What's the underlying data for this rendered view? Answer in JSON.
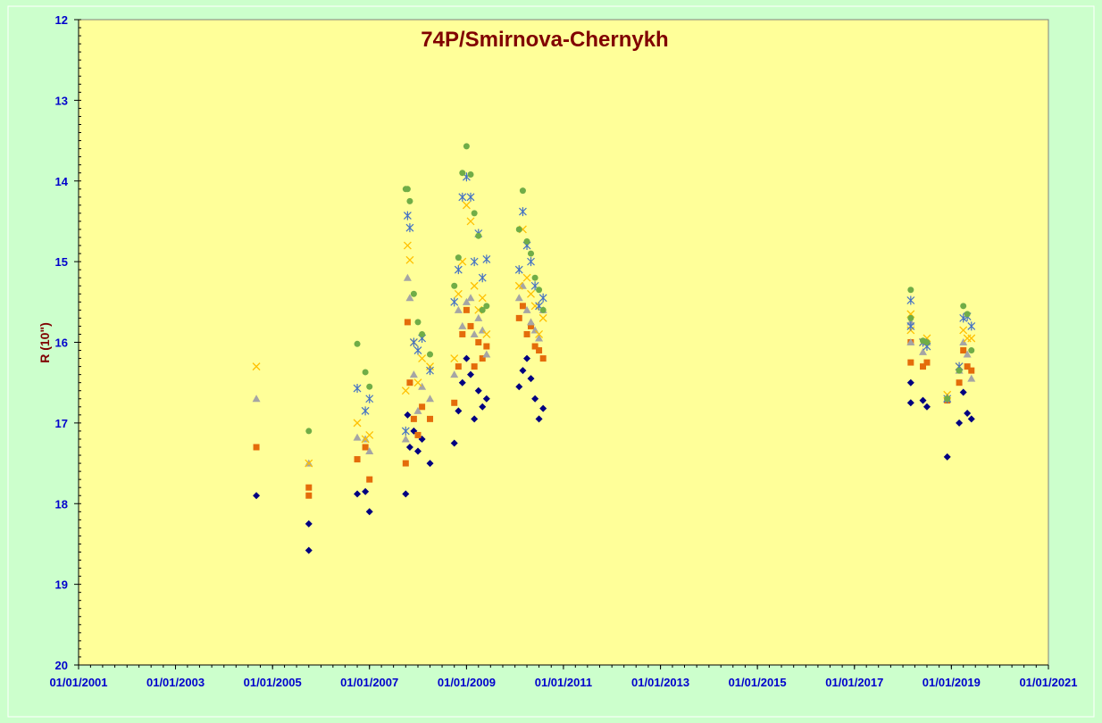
{
  "chart_data": {
    "type": "scatter",
    "title": "74P/Smirnova-Chernykh",
    "ylabel": "R (10\")",
    "xlabel": "",
    "x_axis": "date",
    "xlim": [
      "2001-01-01",
      "2021-01-01"
    ],
    "x_tick_labels": [
      "01/01/2001",
      "01/01/2003",
      "01/01/2005",
      "01/01/2007",
      "01/01/2009",
      "01/01/2011",
      "01/01/2013",
      "01/01/2015",
      "01/01/2017",
      "01/01/2019",
      "01/01/2021"
    ],
    "x_ticks": [
      "2001-01-01",
      "2003-01-01",
      "2005-01-01",
      "2007-01-01",
      "2009-01-01",
      "2011-01-01",
      "2013-01-01",
      "2015-01-01",
      "2017-01-01",
      "2019-01-01",
      "2021-01-01"
    ],
    "ylim": [
      12,
      20
    ],
    "y_inverted": true,
    "y_ticks": [
      12,
      13,
      14,
      15,
      16,
      17,
      18,
      19,
      20
    ],
    "grid": false,
    "legend": "none",
    "colors": {
      "background": "#ccffcc",
      "plot_area": "#ffff99",
      "title": "#800000",
      "tick_labels": "#0000cc"
    },
    "series": [
      {
        "color": "#000080",
        "marker": "diamond",
        "points": [
          [
            "2004-09-01",
            17.9
          ],
          [
            "2005-10-01",
            18.25
          ],
          [
            "2005-10-01",
            18.58
          ],
          [
            "2006-10-01",
            17.88
          ],
          [
            "2006-12-01",
            17.85
          ],
          [
            "2007-01-01",
            18.1
          ],
          [
            "2007-10-01",
            17.88
          ],
          [
            "2007-10-15",
            16.9
          ],
          [
            "2007-11-01",
            17.3
          ],
          [
            "2007-12-01",
            17.1
          ],
          [
            "2008-01-01",
            17.35
          ],
          [
            "2008-02-01",
            17.2
          ],
          [
            "2008-04-01",
            17.5
          ],
          [
            "2008-10-01",
            17.25
          ],
          [
            "2008-11-01",
            16.85
          ],
          [
            "2008-12-01",
            16.5
          ],
          [
            "2009-01-01",
            16.2
          ],
          [
            "2009-02-01",
            16.4
          ],
          [
            "2009-03-01",
            16.95
          ],
          [
            "2009-04-01",
            16.6
          ],
          [
            "2009-05-01",
            16.8
          ],
          [
            "2009-06-01",
            16.7
          ],
          [
            "2010-02-01",
            16.55
          ],
          [
            "2010-03-01",
            16.35
          ],
          [
            "2010-04-01",
            16.2
          ],
          [
            "2010-05-01",
            16.45
          ],
          [
            "2010-06-01",
            16.7
          ],
          [
            "2010-07-01",
            16.95
          ],
          [
            "2010-08-01",
            16.82
          ],
          [
            "2018-03-01",
            16.5
          ],
          [
            "2018-03-01",
            16.75
          ],
          [
            "2018-06-01",
            16.72
          ],
          [
            "2018-07-01",
            16.8
          ],
          [
            "2018-12-01",
            17.42
          ],
          [
            "2019-03-01",
            17.0
          ],
          [
            "2019-04-01",
            16.62
          ],
          [
            "2019-05-01",
            16.88
          ],
          [
            "2019-06-01",
            16.95
          ]
        ]
      },
      {
        "color": "#e46c0a",
        "marker": "square",
        "points": [
          [
            "2004-09-01",
            17.3
          ],
          [
            "2005-10-01",
            17.8
          ],
          [
            "2005-10-01",
            17.9
          ],
          [
            "2006-10-01",
            17.45
          ],
          [
            "2006-12-01",
            17.3
          ],
          [
            "2007-01-01",
            17.7
          ],
          [
            "2007-10-01",
            17.5
          ],
          [
            "2007-10-15",
            15.75
          ],
          [
            "2007-11-01",
            16.5
          ],
          [
            "2007-12-01",
            16.95
          ],
          [
            "2008-01-01",
            17.15
          ],
          [
            "2008-02-01",
            16.8
          ],
          [
            "2008-04-01",
            16.95
          ],
          [
            "2008-10-01",
            16.75
          ],
          [
            "2008-11-01",
            16.3
          ],
          [
            "2008-12-01",
            15.9
          ],
          [
            "2009-01-01",
            15.6
          ],
          [
            "2009-02-01",
            15.8
          ],
          [
            "2009-03-01",
            16.3
          ],
          [
            "2009-04-01",
            16.0
          ],
          [
            "2009-05-01",
            16.2
          ],
          [
            "2009-06-01",
            16.05
          ],
          [
            "2010-02-01",
            15.7
          ],
          [
            "2010-03-01",
            15.55
          ],
          [
            "2010-04-01",
            15.9
          ],
          [
            "2010-05-01",
            15.8
          ],
          [
            "2010-06-01",
            16.05
          ],
          [
            "2010-07-01",
            16.1
          ],
          [
            "2010-08-01",
            16.2
          ],
          [
            "2018-03-01",
            16.0
          ],
          [
            "2018-03-01",
            16.25
          ],
          [
            "2018-06-01",
            16.3
          ],
          [
            "2018-07-01",
            16.25
          ],
          [
            "2018-12-01",
            16.72
          ],
          [
            "2019-03-01",
            16.5
          ],
          [
            "2019-04-01",
            16.1
          ],
          [
            "2019-05-01",
            16.3
          ],
          [
            "2019-06-01",
            16.35
          ]
        ]
      },
      {
        "color": "#a5a5a5",
        "marker": "triangle",
        "points": [
          [
            "2004-09-01",
            16.7
          ],
          [
            "2005-10-01",
            17.5
          ],
          [
            "2006-10-01",
            17.18
          ],
          [
            "2006-12-01",
            17.2
          ],
          [
            "2007-01-01",
            17.35
          ],
          [
            "2007-10-01",
            17.2
          ],
          [
            "2007-10-15",
            15.2
          ],
          [
            "2007-11-01",
            15.45
          ],
          [
            "2007-12-01",
            16.4
          ],
          [
            "2008-01-01",
            16.85
          ],
          [
            "2008-02-01",
            16.55
          ],
          [
            "2008-04-01",
            16.7
          ],
          [
            "2008-10-01",
            16.4
          ],
          [
            "2008-11-01",
            15.6
          ],
          [
            "2008-12-01",
            15.8
          ],
          [
            "2009-01-01",
            15.5
          ],
          [
            "2009-02-01",
            15.45
          ],
          [
            "2009-03-01",
            15.9
          ],
          [
            "2009-04-01",
            15.7
          ],
          [
            "2009-05-01",
            15.85
          ],
          [
            "2009-06-01",
            16.15
          ],
          [
            "2010-02-01",
            15.45
          ],
          [
            "2010-03-01",
            15.3
          ],
          [
            "2010-04-01",
            15.6
          ],
          [
            "2010-05-01",
            15.75
          ],
          [
            "2010-06-01",
            15.85
          ],
          [
            "2010-07-01",
            15.95
          ],
          [
            "2010-08-01",
            15.6
          ],
          [
            "2018-03-01",
            16.0
          ],
          [
            "2018-03-01",
            15.75
          ],
          [
            "2018-06-01",
            16.12
          ],
          [
            "2018-07-01",
            16.0
          ],
          [
            "2018-12-01",
            16.7
          ],
          [
            "2019-03-01",
            16.35
          ],
          [
            "2019-04-01",
            16.0
          ],
          [
            "2019-05-01",
            16.15
          ],
          [
            "2019-06-01",
            16.45
          ]
        ]
      },
      {
        "color": "#ffc000",
        "marker": "x",
        "points": [
          [
            "2004-09-01",
            16.3
          ],
          [
            "2005-10-01",
            17.5
          ],
          [
            "2006-10-01",
            17.0
          ],
          [
            "2006-12-01",
            17.2
          ],
          [
            "2007-01-01",
            17.15
          ],
          [
            "2007-10-01",
            16.6
          ],
          [
            "2007-10-15",
            14.8
          ],
          [
            "2007-11-01",
            14.98
          ],
          [
            "2007-12-01",
            16.0
          ],
          [
            "2008-01-01",
            16.5
          ],
          [
            "2008-02-01",
            16.2
          ],
          [
            "2008-04-01",
            16.3
          ],
          [
            "2008-10-01",
            16.2
          ],
          [
            "2008-11-01",
            15.4
          ],
          [
            "2008-12-01",
            15.0
          ],
          [
            "2009-01-01",
            14.3
          ],
          [
            "2009-02-01",
            14.5
          ],
          [
            "2009-03-01",
            15.3
          ],
          [
            "2009-04-01",
            15.6
          ],
          [
            "2009-05-01",
            15.45
          ],
          [
            "2009-06-01",
            15.9
          ],
          [
            "2010-02-01",
            15.3
          ],
          [
            "2010-03-01",
            14.6
          ],
          [
            "2010-04-01",
            15.2
          ],
          [
            "2010-05-01",
            15.4
          ],
          [
            "2010-06-01",
            15.55
          ],
          [
            "2010-07-01",
            15.9
          ],
          [
            "2010-08-01",
            15.7
          ],
          [
            "2018-03-01",
            15.65
          ],
          [
            "2018-03-01",
            15.85
          ],
          [
            "2018-06-01",
            16.0
          ],
          [
            "2018-07-01",
            15.95
          ],
          [
            "2018-12-01",
            16.65
          ],
          [
            "2019-03-01",
            16.3
          ],
          [
            "2019-04-01",
            15.85
          ],
          [
            "2019-05-01",
            15.95
          ],
          [
            "2019-06-01",
            15.95
          ]
        ]
      },
      {
        "color": "#4472c4",
        "marker": "asterisk",
        "points": [
          [
            "2006-10-01",
            16.57
          ],
          [
            "2006-12-01",
            16.85
          ],
          [
            "2007-01-01",
            16.7
          ],
          [
            "2007-10-01",
            17.1
          ],
          [
            "2007-10-15",
            14.43
          ],
          [
            "2007-11-01",
            14.58
          ],
          [
            "2007-12-01",
            16.0
          ],
          [
            "2008-01-01",
            16.1
          ],
          [
            "2008-02-01",
            15.95
          ],
          [
            "2008-04-01",
            16.35
          ],
          [
            "2008-10-01",
            15.5
          ],
          [
            "2008-11-01",
            15.1
          ],
          [
            "2008-12-01",
            14.2
          ],
          [
            "2009-01-01",
            13.95
          ],
          [
            "2009-02-01",
            14.2
          ],
          [
            "2009-03-01",
            15.0
          ],
          [
            "2009-04-01",
            14.65
          ],
          [
            "2009-05-01",
            15.2
          ],
          [
            "2009-06-01",
            14.97
          ],
          [
            "2010-02-01",
            15.1
          ],
          [
            "2010-03-01",
            14.38
          ],
          [
            "2010-04-01",
            14.8
          ],
          [
            "2010-05-01",
            15.0
          ],
          [
            "2010-06-01",
            15.3
          ],
          [
            "2010-07-01",
            15.55
          ],
          [
            "2010-08-01",
            15.45
          ],
          [
            "2018-03-01",
            15.48
          ],
          [
            "2018-03-01",
            15.8
          ],
          [
            "2018-06-01",
            16.0
          ],
          [
            "2018-07-01",
            16.05
          ],
          [
            "2018-12-01",
            16.7
          ],
          [
            "2019-03-01",
            16.3
          ],
          [
            "2019-04-01",
            15.7
          ],
          [
            "2019-05-01",
            15.68
          ],
          [
            "2019-06-01",
            15.8
          ]
        ]
      },
      {
        "color": "#70ad47",
        "marker": "circle",
        "points": [
          [
            "2006-10-01",
            16.02
          ],
          [
            "2005-10-01",
            17.1
          ],
          [
            "2006-12-01",
            16.37
          ],
          [
            "2007-01-01",
            16.55
          ],
          [
            "2007-10-01",
            14.1
          ],
          [
            "2007-10-15",
            14.1
          ],
          [
            "2007-11-01",
            14.25
          ],
          [
            "2007-12-01",
            15.4
          ],
          [
            "2008-01-01",
            15.75
          ],
          [
            "2008-02-01",
            15.9
          ],
          [
            "2008-04-01",
            16.15
          ],
          [
            "2008-10-01",
            15.3
          ],
          [
            "2008-11-01",
            14.95
          ],
          [
            "2008-12-01",
            13.9
          ],
          [
            "2009-01-01",
            13.57
          ],
          [
            "2009-02-01",
            13.92
          ],
          [
            "2009-03-01",
            14.4
          ],
          [
            "2009-04-01",
            14.68
          ],
          [
            "2009-05-01",
            15.6
          ],
          [
            "2009-06-01",
            15.55
          ],
          [
            "2010-02-01",
            14.6
          ],
          [
            "2010-03-01",
            14.12
          ],
          [
            "2010-04-01",
            14.75
          ],
          [
            "2010-05-01",
            14.9
          ],
          [
            "2010-06-01",
            15.2
          ],
          [
            "2010-07-01",
            15.35
          ],
          [
            "2010-08-01",
            15.6
          ],
          [
            "2018-03-01",
            15.35
          ],
          [
            "2018-03-01",
            15.7
          ],
          [
            "2018-06-01",
            15.98
          ],
          [
            "2018-07-01",
            16.0
          ],
          [
            "2018-12-01",
            16.7
          ],
          [
            "2019-03-01",
            16.35
          ],
          [
            "2019-04-01",
            15.55
          ],
          [
            "2019-05-01",
            15.65
          ],
          [
            "2019-06-01",
            16.1
          ]
        ]
      }
    ]
  }
}
